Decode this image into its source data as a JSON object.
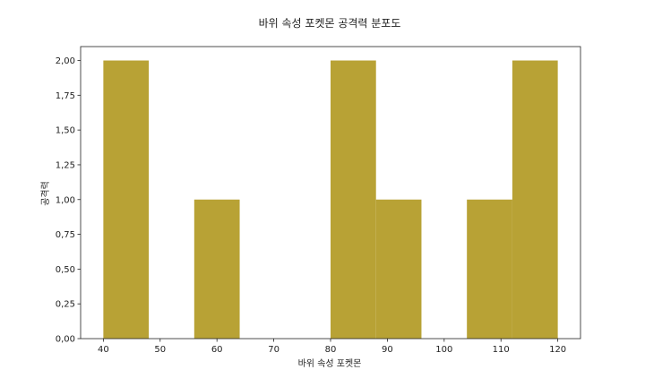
{
  "chart_data": {
    "type": "bar",
    "title": "바위 속성 포켓몬 공격력 분포도",
    "xlabel": "바위 속성 포켓몬",
    "ylabel": "공격력",
    "bins": [
      {
        "x0": 40,
        "x1": 48,
        "value": 2
      },
      {
        "x0": 48,
        "x1": 56,
        "value": 0
      },
      {
        "x0": 56,
        "x1": 64,
        "value": 1
      },
      {
        "x0": 64,
        "x1": 72,
        "value": 0
      },
      {
        "x0": 72,
        "x1": 80,
        "value": 0
      },
      {
        "x0": 80,
        "x1": 88,
        "value": 2
      },
      {
        "x0": 88,
        "x1": 96,
        "value": 1
      },
      {
        "x0": 96,
        "x1": 104,
        "value": 0
      },
      {
        "x0": 104,
        "x1": 112,
        "value": 1
      },
      {
        "x0": 112,
        "x1": 120,
        "value": 2
      }
    ],
    "xlim": [
      36,
      124
    ],
    "ylim": [
      0,
      2.1
    ],
    "xticks": [
      40,
      50,
      60,
      70,
      80,
      90,
      100,
      110,
      120
    ],
    "yticks": [
      0,
      0.25,
      0.5,
      0.75,
      1.0,
      1.25,
      1.5,
      1.75,
      2.0
    ],
    "ytick_labels": [
      "0,00",
      "0,25",
      "0,50",
      "0,75",
      "1,00",
      "1,25",
      "1,50",
      "1,75",
      "2,00"
    ],
    "bar_color": "#b8a235",
    "grid": false,
    "legend": "none"
  }
}
